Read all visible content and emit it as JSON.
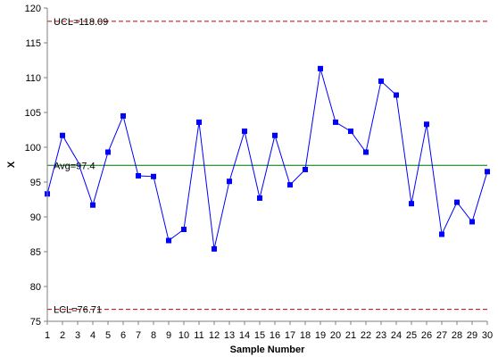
{
  "chart_data": {
    "type": "line",
    "title": "",
    "xlabel": "Sample Number",
    "ylabel": "X",
    "xlim": [
      1,
      30
    ],
    "ylim": [
      75,
      120
    ],
    "y_ticks": [
      75,
      80,
      85,
      90,
      95,
      100,
      105,
      110,
      115,
      120
    ],
    "x_ticks": [
      1,
      2,
      3,
      4,
      5,
      6,
      7,
      8,
      9,
      10,
      11,
      12,
      13,
      14,
      15,
      16,
      17,
      18,
      19,
      20,
      21,
      22,
      23,
      24,
      25,
      26,
      27,
      28,
      29,
      30
    ],
    "grid": false,
    "legend": "none",
    "series": [
      {
        "color": "#0000ff",
        "x": [
          1,
          2,
          3,
          4,
          5,
          6,
          7,
          8,
          9,
          10,
          11,
          12,
          13,
          14,
          15,
          16,
          17,
          18,
          19,
          20,
          21,
          22,
          23,
          24,
          25,
          26,
          27,
          28,
          29,
          30
        ],
        "values": [
          93.3,
          101.7,
          98.0,
          91.7,
          99.3,
          104.5,
          95.9,
          95.8,
          86.6,
          88.2,
          103.6,
          85.4,
          95.1,
          102.3,
          92.7,
          101.7,
          94.6,
          96.8,
          111.3,
          103.6,
          102.3,
          99.3,
          109.5,
          107.5,
          91.9,
          103.3,
          87.5,
          92.1,
          89.3,
          96.5
        ],
        "markers": [
          true,
          true,
          false,
          true,
          true,
          true,
          true,
          true,
          true,
          true,
          true,
          true,
          true,
          true,
          true,
          true,
          true,
          true,
          true,
          true,
          true,
          true,
          true,
          true,
          true,
          true,
          true,
          true,
          true,
          true
        ]
      }
    ],
    "reference_lines": [
      {
        "label": "UCL=118.09",
        "value": 118.09,
        "color": "#c00000",
        "style": "dashed"
      },
      {
        "label": "Avg=97.4",
        "value": 97.4,
        "color": "#007000",
        "style": "solid"
      },
      {
        "label": "LCL=76.71",
        "value": 76.71,
        "color": "#c00000",
        "style": "dashed"
      }
    ]
  }
}
